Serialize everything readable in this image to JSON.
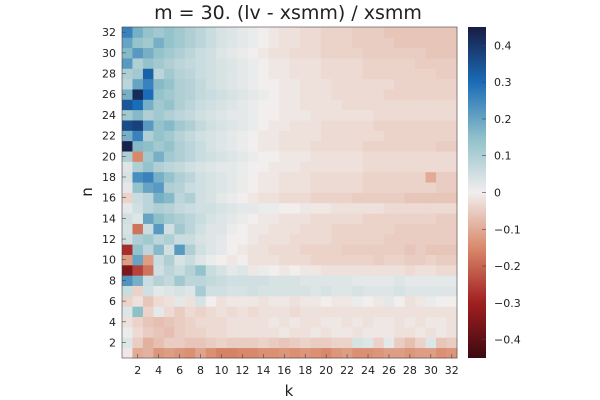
{
  "chart_data": {
    "type": "heatmap",
    "title": "m = 30. (lv - xsmm) / xsmm",
    "xlabel": "k",
    "ylabel": "n",
    "x_range": [
      1,
      32
    ],
    "y_range": [
      1,
      32
    ],
    "x_ticks": [
      2,
      4,
      6,
      8,
      10,
      12,
      14,
      16,
      18,
      20,
      22,
      24,
      26,
      28,
      30,
      32
    ],
    "y_ticks": [
      2,
      4,
      6,
      8,
      10,
      12,
      14,
      16,
      18,
      20,
      22,
      24,
      26,
      28,
      30,
      32
    ],
    "colorbar": {
      "range": [
        -0.45,
        0.45
      ],
      "ticks": [
        -0.4,
        -0.3,
        -0.2,
        -0.1,
        0,
        0.1,
        0.2,
        0.3,
        0.4
      ],
      "tick_labels": [
        "−0.4",
        "−0.3",
        "−0.2",
        "−0.1",
        "0",
        "0.1",
        "0.2",
        "0.3",
        "0.4"
      ],
      "colormap": "balance",
      "stops": [
        "#3c0911",
        "#a11f21",
        "#d9896b",
        "#f1eeed",
        "#8ec0c9",
        "#1a6cb8",
        "#181c43"
      ]
    },
    "grid": false,
    "rows_note": "values[i][j] = value at n = i+1, k = j+1",
    "values": [
      [
        -0.01,
        -0.1,
        -0.09,
        -0.13,
        -0.12,
        -0.13,
        -0.14,
        -0.11,
        -0.14,
        -0.16,
        -0.16,
        -0.15,
        -0.15,
        -0.14,
        -0.14,
        -0.13,
        -0.14,
        -0.13,
        -0.14,
        -0.15,
        -0.13,
        -0.12,
        -0.14,
        -0.14,
        -0.13,
        -0.12,
        -0.12,
        -0.13,
        -0.12,
        -0.12,
        -0.14,
        -0.13
      ],
      [
        0.03,
        -0.05,
        -0.09,
        -0.07,
        -0.05,
        -0.05,
        -0.06,
        -0.06,
        -0.05,
        -0.04,
        -0.05,
        -0.05,
        -0.05,
        -0.04,
        -0.05,
        -0.06,
        -0.05,
        -0.04,
        -0.05,
        -0.05,
        -0.04,
        -0.04,
        0.04,
        0.03,
        -0.04,
        0.02,
        -0.05,
        -0.07,
        -0.04,
        0.03,
        -0.06,
        -0.05
      ],
      [
        0.01,
        -0.03,
        -0.05,
        -0.06,
        -0.07,
        -0.05,
        -0.04,
        -0.04,
        -0.03,
        -0.03,
        -0.02,
        -0.02,
        -0.02,
        -0.02,
        -0.02,
        -0.01,
        -0.02,
        -0.02,
        -0.01,
        -0.02,
        -0.01,
        -0.01,
        -0.02,
        -0.01,
        -0.01,
        -0.01,
        -0.02,
        -0.02,
        -0.01,
        -0.02,
        -0.01,
        -0.02
      ],
      [
        -0.02,
        -0.04,
        -0.06,
        -0.07,
        -0.06,
        -0.05,
        -0.04,
        -0.03,
        -0.03,
        -0.03,
        -0.02,
        -0.02,
        -0.02,
        -0.02,
        -0.01,
        -0.02,
        -0.01,
        -0.02,
        -0.02,
        -0.01,
        -0.01,
        -0.02,
        -0.01,
        -0.02,
        -0.01,
        -0.01,
        -0.02,
        -0.01,
        -0.02,
        -0.01,
        -0.01,
        -0.02
      ],
      [
        0.03,
        0.15,
        -0.04,
        0.02,
        -0.03,
        -0.05,
        -0.03,
        -0.04,
        -0.03,
        -0.02,
        -0.03,
        -0.02,
        -0.03,
        -0.02,
        -0.02,
        -0.02,
        -0.03,
        -0.02,
        -0.02,
        -0.02,
        -0.02,
        -0.02,
        -0.02,
        -0.02,
        -0.02,
        -0.02,
        -0.02,
        -0.02,
        -0.02,
        -0.02,
        -0.02,
        -0.02
      ],
      [
        -0.04,
        -0.02,
        -0.06,
        -0.03,
        -0.02,
        0.02,
        -0.02,
        0.04,
        0.0,
        -0.02,
        -0.01,
        -0.01,
        -0.01,
        -0.02,
        -0.01,
        -0.01,
        -0.02,
        -0.01,
        -0.01,
        0.0,
        -0.01,
        -0.01,
        0.01,
        0.0,
        -0.01,
        0.02,
        0.0,
        -0.02,
        -0.01,
        0.01,
        0.0,
        0.0
      ],
      [
        0.06,
        -0.04,
        0.05,
        0.02,
        0.03,
        0.04,
        0.03,
        0.11,
        0.05,
        0.05,
        0.04,
        0.04,
        0.05,
        0.04,
        0.04,
        0.04,
        0.04,
        0.04,
        0.03,
        0.04,
        0.03,
        0.03,
        0.04,
        0.03,
        0.03,
        0.03,
        0.04,
        0.03,
        0.03,
        0.03,
        0.03,
        0.03
      ],
      [
        0.23,
        0.18,
        0.06,
        0.09,
        0.07,
        0.12,
        0.08,
        0.08,
        0.07,
        0.06,
        0.05,
        0.05,
        0.05,
        0.05,
        0.04,
        0.04,
        0.04,
        0.03,
        0.03,
        0.03,
        0.03,
        0.03,
        0.02,
        0.02,
        0.02,
        0.02,
        0.03,
        0.02,
        0.02,
        0.02,
        0.02,
        0.02
      ],
      [
        -0.35,
        -0.25,
        -0.18,
        0.05,
        0.08,
        0.06,
        0.09,
        0.14,
        0.06,
        0.04,
        0.02,
        0.03,
        -0.01,
        0.01,
        0.0,
        -0.01,
        0.0,
        -0.01,
        -0.01,
        -0.02,
        -0.02,
        -0.02,
        -0.02,
        -0.02,
        -0.02,
        -0.02,
        -0.02,
        -0.03,
        -0.02,
        -0.02,
        -0.03,
        -0.03
      ],
      [
        -0.12,
        0.2,
        -0.12,
        0.06,
        0.1,
        0.04,
        0.06,
        0.03,
        0.01,
        0.0,
        -0.01,
        0.0,
        -0.02,
        -0.02,
        -0.02,
        -0.03,
        -0.03,
        -0.03,
        -0.04,
        -0.04,
        -0.04,
        -0.04,
        -0.04,
        -0.04,
        -0.05,
        -0.04,
        -0.04,
        -0.05,
        -0.05,
        -0.04,
        -0.05,
        -0.05
      ],
      [
        -0.28,
        0.14,
        0.08,
        0.16,
        0.05,
        0.22,
        0.1,
        0.05,
        0.03,
        0.02,
        0.0,
        -0.01,
        -0.02,
        -0.02,
        -0.03,
        -0.03,
        -0.03,
        -0.04,
        -0.04,
        -0.04,
        -0.04,
        -0.05,
        -0.05,
        -0.05,
        -0.05,
        -0.05,
        -0.05,
        -0.06,
        -0.05,
        -0.06,
        -0.06,
        -0.06
      ],
      [
        0.05,
        0.1,
        0.12,
        0.08,
        0.1,
        0.06,
        0.06,
        0.04,
        0.03,
        0.02,
        0.0,
        0.0,
        -0.01,
        -0.02,
        -0.02,
        -0.02,
        -0.03,
        -0.03,
        -0.03,
        -0.03,
        -0.04,
        -0.04,
        -0.04,
        -0.04,
        -0.04,
        -0.05,
        -0.05,
        -0.05,
        -0.05,
        -0.05,
        -0.05,
        -0.05
      ],
      [
        0.04,
        -0.18,
        0.06,
        0.22,
        0.05,
        0.12,
        0.08,
        0.05,
        0.03,
        0.03,
        0.01,
        0.0,
        -0.01,
        -0.01,
        -0.02,
        -0.02,
        -0.02,
        -0.03,
        -0.03,
        -0.03,
        -0.04,
        -0.04,
        -0.04,
        -0.04,
        -0.04,
        -0.04,
        -0.05,
        -0.05,
        -0.05,
        -0.05,
        -0.05,
        -0.05
      ],
      [
        0.05,
        0.03,
        0.2,
        0.15,
        0.12,
        0.1,
        0.08,
        0.06,
        0.04,
        0.03,
        0.02,
        0.01,
        0.0,
        -0.01,
        -0.01,
        -0.02,
        -0.02,
        -0.02,
        -0.03,
        -0.03,
        -0.03,
        -0.03,
        -0.03,
        -0.04,
        -0.04,
        -0.04,
        -0.04,
        -0.04,
        -0.04,
        -0.04,
        -0.05,
        -0.05
      ],
      [
        0.02,
        0.05,
        0.08,
        0.1,
        0.09,
        0.07,
        0.06,
        0.05,
        0.05,
        0.04,
        0.03,
        0.02,
        0.02,
        0.01,
        0.01,
        0.0,
        0.0,
        -0.01,
        -0.01,
        -0.01,
        -0.02,
        -0.02,
        -0.02,
        -0.02,
        -0.02,
        -0.03,
        -0.03,
        -0.03,
        -0.03,
        -0.03,
        -0.03,
        -0.03
      ],
      [
        -0.04,
        0.06,
        0.08,
        0.18,
        0.16,
        0.08,
        0.1,
        0.05,
        0.04,
        0.02,
        0.01,
        0.0,
        -0.01,
        -0.02,
        -0.02,
        -0.03,
        -0.03,
        -0.03,
        -0.04,
        -0.04,
        -0.04,
        -0.04,
        -0.05,
        -0.05,
        -0.05,
        -0.05,
        -0.05,
        -0.06,
        -0.06,
        -0.06,
        -0.06,
        -0.06
      ],
      [
        0.02,
        0.14,
        0.2,
        0.22,
        0.1,
        0.09,
        0.06,
        0.05,
        0.04,
        0.03,
        0.02,
        0.01,
        0.0,
        -0.01,
        -0.01,
        -0.02,
        -0.02,
        -0.02,
        -0.03,
        -0.03,
        -0.03,
        -0.03,
        -0.03,
        -0.04,
        -0.04,
        -0.04,
        -0.04,
        -0.04,
        -0.04,
        -0.04,
        -0.05,
        -0.05
      ],
      [
        0.04,
        0.24,
        0.26,
        0.18,
        0.14,
        0.1,
        0.08,
        0.05,
        0.04,
        0.03,
        0.02,
        0.01,
        0.0,
        -0.01,
        -0.01,
        -0.02,
        -0.02,
        -0.02,
        -0.03,
        -0.03,
        -0.03,
        -0.03,
        -0.03,
        -0.04,
        -0.04,
        -0.04,
        -0.04,
        -0.04,
        -0.04,
        -0.1,
        -0.05,
        -0.05
      ],
      [
        0.03,
        0.1,
        0.14,
        0.1,
        0.08,
        0.07,
        0.05,
        0.04,
        0.03,
        0.02,
        0.02,
        0.01,
        0.0,
        0.0,
        -0.01,
        -0.01,
        -0.01,
        -0.02,
        -0.02,
        -0.02,
        -0.02,
        -0.02,
        -0.02,
        -0.03,
        -0.03,
        -0.03,
        -0.03,
        -0.03,
        -0.03,
        -0.03,
        -0.03,
        -0.03
      ],
      [
        0.1,
        -0.15,
        0.12,
        0.18,
        0.12,
        0.1,
        0.08,
        0.06,
        0.05,
        0.04,
        0.03,
        0.02,
        0.01,
        0.0,
        0.0,
        -0.01,
        -0.01,
        -0.01,
        -0.02,
        -0.02,
        -0.02,
        -0.02,
        -0.02,
        -0.03,
        -0.03,
        -0.03,
        -0.03,
        -0.03,
        -0.03,
        -0.03,
        -0.03,
        -0.03
      ],
      [
        0.44,
        0.16,
        0.15,
        0.12,
        0.14,
        0.1,
        0.08,
        0.06,
        0.04,
        0.03,
        0.02,
        0.01,
        0.0,
        -0.01,
        -0.01,
        -0.02,
        -0.02,
        -0.02,
        -0.03,
        -0.03,
        -0.03,
        -0.03,
        -0.03,
        -0.04,
        -0.04,
        -0.04,
        -0.04,
        -0.04,
        -0.04,
        -0.04,
        -0.05,
        -0.05
      ],
      [
        0.18,
        0.26,
        0.1,
        0.14,
        0.12,
        0.09,
        0.07,
        0.05,
        0.04,
        0.03,
        0.02,
        0.01,
        0.0,
        -0.01,
        -0.01,
        -0.02,
        -0.02,
        -0.02,
        -0.02,
        -0.03,
        -0.03,
        -0.03,
        -0.03,
        -0.03,
        -0.03,
        -0.04,
        -0.04,
        -0.04,
        -0.04,
        -0.04,
        -0.04,
        -0.04
      ],
      [
        0.36,
        0.38,
        0.22,
        0.14,
        0.16,
        0.12,
        0.1,
        0.07,
        0.05,
        0.04,
        0.03,
        0.02,
        0.01,
        0.0,
        -0.01,
        -0.01,
        -0.02,
        -0.02,
        -0.02,
        -0.03,
        -0.03,
        -0.03,
        -0.03,
        -0.03,
        -0.04,
        -0.04,
        -0.04,
        -0.04,
        -0.04,
        -0.04,
        -0.04,
        -0.04
      ],
      [
        0.12,
        0.16,
        0.1,
        0.12,
        0.1,
        0.08,
        0.07,
        0.05,
        0.04,
        0.03,
        0.02,
        0.02,
        0.01,
        0.0,
        0.0,
        -0.01,
        -0.01,
        -0.01,
        -0.02,
        -0.02,
        -0.02,
        -0.02,
        -0.02,
        -0.02,
        -0.03,
        -0.03,
        -0.03,
        -0.03,
        -0.03,
        -0.03,
        -0.03,
        -0.03
      ],
      [
        0.34,
        0.3,
        0.18,
        0.12,
        0.14,
        0.1,
        0.08,
        0.06,
        0.05,
        0.04,
        0.03,
        0.02,
        0.01,
        0.0,
        0.0,
        -0.01,
        -0.01,
        -0.02,
        -0.02,
        -0.02,
        -0.02,
        -0.03,
        -0.03,
        -0.03,
        -0.03,
        -0.03,
        -0.03,
        -0.03,
        -0.03,
        -0.03,
        -0.03,
        -0.03
      ],
      [
        0.18,
        0.42,
        0.3,
        0.14,
        0.12,
        0.1,
        0.09,
        0.07,
        0.06,
        0.05,
        0.04,
        0.03,
        0.02,
        0.01,
        0.0,
        -0.01,
        -0.01,
        -0.02,
        -0.02,
        -0.02,
        -0.03,
        -0.03,
        -0.03,
        -0.03,
        -0.03,
        -0.04,
        -0.04,
        -0.04,
        -0.04,
        -0.04,
        -0.04,
        -0.04
      ],
      [
        0.08,
        0.2,
        0.26,
        0.16,
        0.14,
        0.1,
        0.09,
        0.07,
        0.05,
        0.04,
        0.03,
        0.02,
        0.01,
        0.0,
        0.0,
        -0.01,
        -0.01,
        -0.02,
        -0.02,
        -0.02,
        -0.03,
        -0.03,
        -0.03,
        -0.03,
        -0.03,
        -0.03,
        -0.04,
        -0.04,
        -0.04,
        -0.04,
        -0.04,
        -0.04
      ],
      [
        0.1,
        0.12,
        0.32,
        0.08,
        0.12,
        0.09,
        0.08,
        0.06,
        0.05,
        0.04,
        0.03,
        0.02,
        0.01,
        0.0,
        -0.01,
        -0.01,
        -0.02,
        -0.02,
        -0.02,
        -0.03,
        -0.03,
        -0.03,
        -0.03,
        -0.04,
        -0.04,
        -0.04,
        -0.04,
        -0.04,
        -0.04,
        -0.04,
        -0.05,
        -0.05
      ],
      [
        0.22,
        0.1,
        0.14,
        0.12,
        0.1,
        0.08,
        0.07,
        0.06,
        0.05,
        0.04,
        0.03,
        0.02,
        0.01,
        0.0,
        -0.01,
        -0.01,
        -0.02,
        -0.02,
        -0.02,
        -0.03,
        -0.03,
        -0.03,
        -0.03,
        -0.04,
        -0.04,
        -0.04,
        -0.04,
        -0.04,
        -0.05,
        -0.05,
        -0.05,
        -0.05
      ],
      [
        0.16,
        0.22,
        0.18,
        0.14,
        0.12,
        0.1,
        0.08,
        0.06,
        0.05,
        0.03,
        0.02,
        0.01,
        0.0,
        -0.01,
        -0.02,
        -0.02,
        -0.03,
        -0.03,
        -0.03,
        -0.04,
        -0.04,
        -0.04,
        -0.04,
        -0.05,
        -0.05,
        -0.05,
        -0.05,
        -0.05,
        -0.05,
        -0.06,
        -0.06,
        -0.06
      ],
      [
        0.2,
        0.14,
        0.12,
        0.18,
        0.14,
        0.12,
        0.1,
        0.08,
        0.06,
        0.04,
        0.03,
        0.02,
        0.01,
        0.0,
        -0.01,
        -0.02,
        -0.02,
        -0.03,
        -0.03,
        -0.04,
        -0.04,
        -0.04,
        -0.05,
        -0.05,
        -0.05,
        -0.05,
        -0.06,
        -0.06,
        -0.06,
        -0.06,
        -0.06,
        -0.06
      ],
      [
        0.26,
        0.18,
        0.14,
        0.12,
        0.14,
        0.12,
        0.1,
        0.08,
        0.06,
        0.04,
        0.03,
        0.02,
        0.01,
        0.0,
        -0.01,
        -0.02,
        -0.02,
        -0.03,
        -0.03,
        -0.04,
        -0.04,
        -0.04,
        -0.05,
        -0.05,
        -0.05,
        -0.06,
        -0.06,
        -0.06,
        -0.06,
        -0.06,
        -0.06,
        -0.06
      ]
    ]
  }
}
